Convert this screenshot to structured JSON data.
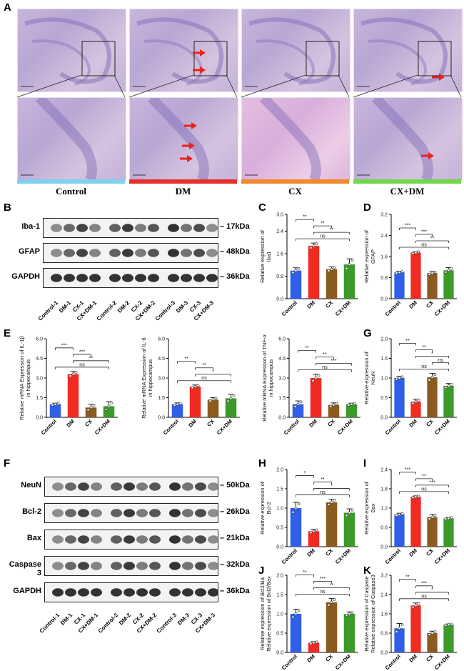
{
  "panels": {
    "A": "A",
    "B": "B",
    "C": "C",
    "D": "D",
    "E": "E",
    "F": "F",
    "G": "G",
    "H": "H",
    "I": "I",
    "J": "J",
    "K": "K"
  },
  "histology": {
    "groups": [
      {
        "label": "Control",
        "color": "#7fd1ef"
      },
      {
        "label": "DM",
        "color": "#e8312a"
      },
      {
        "label": "CX",
        "color": "#f08a2c"
      },
      {
        "label": "CX+DM",
        "color": "#6fd84a"
      }
    ]
  },
  "blotB": {
    "proteins": [
      {
        "name": "Iba-1",
        "kda": "17kDa"
      },
      {
        "name": "GFAP",
        "kda": "48kDa"
      },
      {
        "name": "GAPDH",
        "kda": "36kDa"
      }
    ],
    "lanes": [
      "Control-1",
      "DM-1",
      "CX-1",
      "CX+DM-1",
      "Control-2",
      "DM-2",
      "CX-2",
      "CX+DM-2",
      "Control-3",
      "DM-3",
      "CX-3",
      "CX+DM-3"
    ]
  },
  "blotF": {
    "proteins": [
      {
        "name": "NeuN",
        "kda": "50kDa"
      },
      {
        "name": "Bcl-2",
        "kda": "26kDa"
      },
      {
        "name": "Bax",
        "kda": "21kDa"
      },
      {
        "name": "Caspase 3",
        "kda": "32kDa"
      },
      {
        "name": "GAPDH",
        "kda": "36kDa"
      }
    ],
    "lanes": [
      "Control-1",
      "DM-1",
      "CX-1",
      "CX+DM-1",
      "Control-2",
      "DM-2",
      "CX-2",
      "CX+DM-2",
      "Control-3",
      "DM-3",
      "CX-3",
      "CX+DM-3"
    ]
  },
  "colors": {
    "Control": "#2f5fe6",
    "DM": "#ef2b22",
    "CX": "#8a5a1f",
    "CX+DM": "#3c9a2a"
  },
  "chart_data": [
    {
      "id": "C",
      "type": "bar",
      "categories": [
        "Control",
        "DM",
        "CX",
        "CX+DM"
      ],
      "values": [
        1.0,
        1.88,
        1.05,
        1.22
      ],
      "errors": [
        0.1,
        0.1,
        0.08,
        0.2
      ],
      "ylabel": "Relative expression of Iba1",
      "ylim": [
        0,
        3.0
      ],
      "yticks": [
        "0.0",
        "0.8",
        "1.6",
        "2.4",
        "3.0"
      ],
      "sig": [
        {
          "from": 0,
          "to": 1,
          "label": "**"
        },
        {
          "from": 1,
          "to": 2,
          "label": "**"
        },
        {
          "from": 1,
          "to": 3,
          "label": "**"
        },
        {
          "from": 0,
          "to": 3,
          "label": "ns"
        }
      ]
    },
    {
      "id": "D",
      "type": "bar",
      "categories": [
        "Control",
        "DM",
        "CX",
        "CX+DM"
      ],
      "values": [
        1.0,
        1.75,
        0.97,
        1.08
      ],
      "errors": [
        0.04,
        0.04,
        0.06,
        0.1
      ],
      "ylabel": "Relative expression of GFAP",
      "ylim": [
        0,
        3.2
      ],
      "yticks": [
        "0.0",
        "0.8",
        "1.6",
        "2.4",
        "3.2"
      ],
      "sig": [
        {
          "from": 0,
          "to": 1,
          "label": "***"
        },
        {
          "from": 1,
          "to": 2,
          "label": "***"
        },
        {
          "from": 1,
          "to": 3,
          "label": "**"
        },
        {
          "from": 0,
          "to": 3,
          "label": "ns"
        }
      ]
    },
    {
      "id": "E1",
      "type": "bar",
      "categories": [
        "Control",
        "DM",
        "CX",
        "CX+DM"
      ],
      "values": [
        1.0,
        3.3,
        0.75,
        0.85
      ],
      "errors": [
        0.08,
        0.2,
        0.25,
        0.35
      ],
      "ylabel": "Relative mRNA Expression of IL-1β in hippocampus",
      "ylim": [
        0,
        6.0
      ],
      "yticks": [
        "0.0",
        "1.5",
        "3.0",
        "4.5",
        "6.0"
      ],
      "sig": [
        {
          "from": 0,
          "to": 1,
          "label": "***"
        },
        {
          "from": 1,
          "to": 2,
          "label": "***"
        },
        {
          "from": 1,
          "to": 3,
          "label": "**"
        },
        {
          "from": 0,
          "to": 3,
          "label": "ns"
        }
      ]
    },
    {
      "id": "E2",
      "type": "bar",
      "categories": [
        "Control",
        "DM",
        "CX",
        "CX+DM"
      ],
      "values": [
        1.0,
        2.35,
        1.35,
        1.45
      ],
      "errors": [
        0.1,
        0.12,
        0.15,
        0.3
      ],
      "ylabel": "Relative mRNA Expression of IL-6 in hippocampus",
      "ylim": [
        0,
        6.0
      ],
      "yticks": [
        "0.0",
        "1.5",
        "3.0",
        "4.5",
        "6.0"
      ],
      "sig": [
        {
          "from": 0,
          "to": 1,
          "label": "**"
        },
        {
          "from": 1,
          "to": 2,
          "label": "**"
        },
        {
          "from": 1,
          "to": 3,
          "label": "*"
        },
        {
          "from": 0,
          "to": 3,
          "label": "ns"
        }
      ]
    },
    {
      "id": "E3",
      "type": "bar",
      "categories": [
        "Control",
        "DM",
        "CX",
        "CX+DM"
      ],
      "values": [
        1.0,
        3.0,
        0.95,
        1.0
      ],
      "errors": [
        0.25,
        0.3,
        0.15,
        0.08
      ],
      "ylabel": "Relative mRNA Expression of TNF-α in hippocampus",
      "ylim": [
        0,
        6.0
      ],
      "yticks": [
        "0.0",
        "1.5",
        "3.0",
        "4.5",
        "6.0"
      ],
      "sig": [
        {
          "from": 0,
          "to": 1,
          "label": "**"
        },
        {
          "from": 1,
          "to": 2,
          "label": "**"
        },
        {
          "from": 1,
          "to": 3,
          "label": "***"
        },
        {
          "from": 0,
          "to": 3,
          "label": "ns"
        }
      ]
    },
    {
      "id": "G",
      "type": "bar",
      "categories": [
        "Control",
        "DM",
        "CX",
        "CX+DM"
      ],
      "values": [
        1.0,
        0.4,
        1.02,
        0.8
      ],
      "errors": [
        0.04,
        0.06,
        0.1,
        0.06
      ],
      "ylabel": "Relative expression of NeuN",
      "ylim": [
        0,
        2.0
      ],
      "yticks": [
        "0.0",
        "0.5",
        "1.0",
        "1.5",
        "2.0"
      ],
      "sig": [
        {
          "from": 0,
          "to": 1,
          "label": "**"
        },
        {
          "from": 1,
          "to": 2,
          "label": "**"
        },
        {
          "from": 1,
          "to": 3,
          "label": "*"
        },
        {
          "from": 2,
          "to": 3,
          "label": "ns"
        },
        {
          "from": 0,
          "to": 3,
          "label": "ns"
        }
      ]
    },
    {
      "id": "H",
      "type": "bar",
      "categories": [
        "Control",
        "DM",
        "CX",
        "CX+DM"
      ],
      "values": [
        1.0,
        0.4,
        1.15,
        0.88
      ],
      "errors": [
        0.15,
        0.05,
        0.08,
        0.1
      ],
      "ylabel": "Relative expression of Bcl-2",
      "ylim": [
        0,
        2.0
      ],
      "yticks": [
        "0.0",
        "0.5",
        "1.0",
        "1.5",
        "2.0"
      ],
      "sig": [
        {
          "from": 0,
          "to": 1,
          "label": "*"
        },
        {
          "from": 1,
          "to": 2,
          "label": "**"
        },
        {
          "from": 1,
          "to": 3,
          "label": "*"
        },
        {
          "from": 0,
          "to": 3,
          "label": "ns"
        }
      ]
    },
    {
      "id": "I",
      "type": "bar",
      "categories": [
        "Control",
        "DM",
        "CX",
        "CX+DM"
      ],
      "values": [
        1.0,
        1.55,
        0.92,
        0.88
      ],
      "errors": [
        0.04,
        0.03,
        0.08,
        0.03
      ],
      "ylabel": "Relative expression of Bax",
      "ylim": [
        0,
        2.4
      ],
      "yticks": [
        "0.0",
        "0.6",
        "1.2",
        "1.8",
        "2.4"
      ],
      "sig": [
        {
          "from": 0,
          "to": 1,
          "label": "***"
        },
        {
          "from": 1,
          "to": 2,
          "label": "**"
        },
        {
          "from": 1,
          "to": 3,
          "label": "***"
        },
        {
          "from": 0,
          "to": 3,
          "label": "ns"
        }
      ]
    },
    {
      "id": "J",
      "type": "bar",
      "categories": [
        "Control",
        "DM",
        "CX",
        "CX+DM"
      ],
      "values": [
        1.0,
        0.25,
        1.3,
        1.0
      ],
      "errors": [
        0.12,
        0.03,
        0.1,
        0.05
      ],
      "ylabel": "Relative expression of Bcl2/Bax",
      "ylim": [
        0,
        2.0
      ],
      "yticks": [
        "0.0",
        "0.5",
        "1.0",
        "1.5",
        "2.0"
      ],
      "sig": [
        {
          "from": 0,
          "to": 1,
          "label": "**"
        },
        {
          "from": 1,
          "to": 2,
          "label": "***"
        },
        {
          "from": 1,
          "to": 3,
          "label": "**"
        },
        {
          "from": 0,
          "to": 3,
          "label": "ns"
        }
      ]
    },
    {
      "id": "K",
      "type": "bar",
      "categories": [
        "Control",
        "DM",
        "CX",
        "CX+DM"
      ],
      "values": [
        1.0,
        1.95,
        0.8,
        1.15
      ],
      "errors": [
        0.2,
        0.1,
        0.08,
        0.03
      ],
      "ylabel": "Relative expression of Caspase3",
      "ylim": [
        0,
        3.2
      ],
      "yticks": [
        "0.0",
        "0.8",
        "1.6",
        "2.4",
        "3.2"
      ],
      "sig": [
        {
          "from": 0,
          "to": 1,
          "label": "**"
        },
        {
          "from": 1,
          "to": 2,
          "label": "***"
        },
        {
          "from": 1,
          "to": 3,
          "label": "*"
        },
        {
          "from": 0,
          "to": 3,
          "label": "ns"
        }
      ]
    }
  ]
}
